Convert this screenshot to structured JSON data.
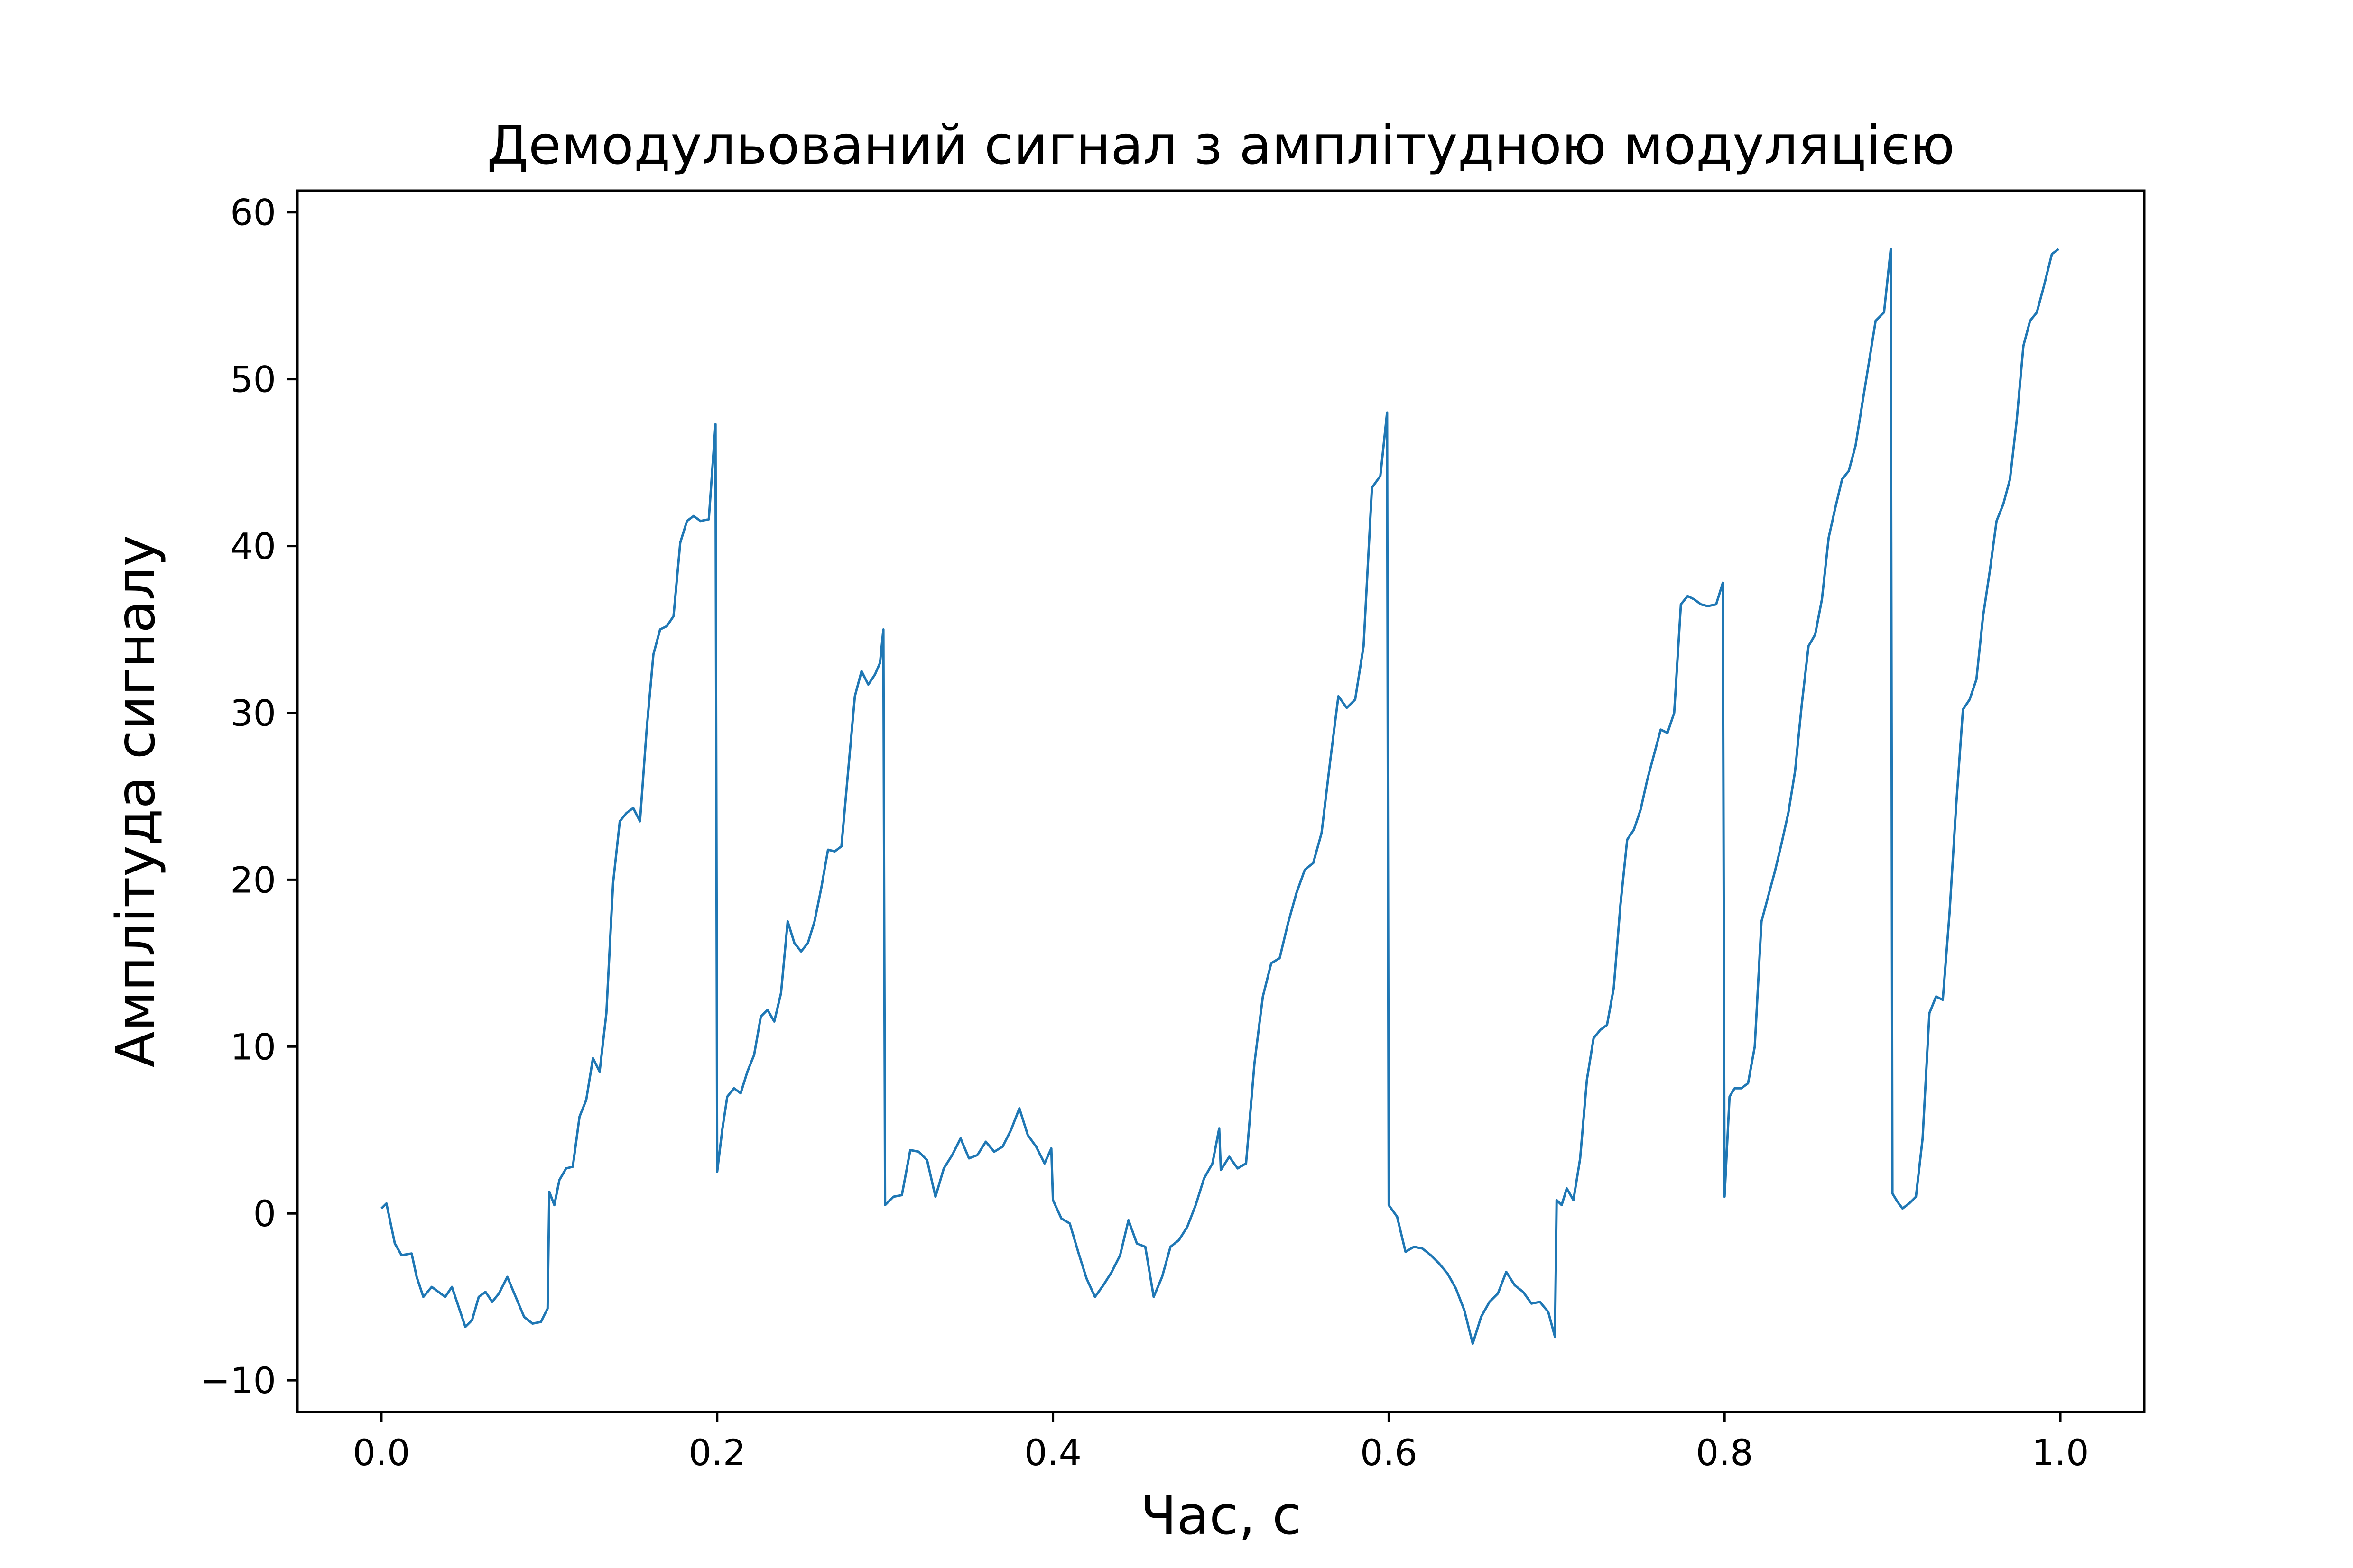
{
  "chart_data": {
    "type": "line",
    "title": "Демодульований сигнал з амплітудною модуляцією",
    "xlabel": "Час, с",
    "ylabel": "Амплітуда сигналу",
    "xlim": [
      -0.05,
      1.05
    ],
    "ylim": [
      -11.9,
      61.3
    ],
    "xticks": [
      0.0,
      0.2,
      0.4,
      0.6,
      0.8,
      1.0
    ],
    "xtick_labels": [
      "0.0",
      "0.2",
      "0.4",
      "0.6",
      "0.8",
      "1.0"
    ],
    "yticks": [
      -10,
      0,
      10,
      20,
      30,
      40,
      50,
      60
    ],
    "ytick_labels": [
      "−10",
      "0",
      "10",
      "20",
      "30",
      "40",
      "50",
      "60"
    ],
    "grid": false,
    "line_color": "#1f77b4",
    "series": [
      {
        "x": [
          0.0,
          0.003,
          0.008,
          0.012,
          0.018,
          0.021,
          0.025,
          0.03,
          0.034,
          0.038,
          0.042,
          0.046,
          0.05,
          0.054,
          0.058,
          0.062,
          0.066,
          0.07,
          0.075,
          0.08,
          0.085,
          0.09,
          0.095,
          0.099,
          0.1,
          0.103,
          0.106,
          0.11,
          0.114,
          0.118,
          0.122,
          0.126,
          0.13,
          0.134,
          0.138,
          0.142,
          0.146,
          0.15,
          0.154,
          0.158,
          0.162,
          0.166,
          0.17,
          0.174,
          0.178,
          0.182,
          0.186,
          0.19,
          0.195,
          0.199,
          0.2,
          0.203,
          0.206,
          0.21,
          0.214,
          0.218,
          0.222,
          0.226,
          0.23,
          0.234,
          0.238,
          0.242,
          0.246,
          0.25,
          0.254,
          0.258,
          0.262,
          0.266,
          0.27,
          0.274,
          0.278,
          0.282,
          0.286,
          0.29,
          0.294,
          0.297,
          0.299,
          0.3,
          0.305,
          0.31,
          0.315,
          0.32,
          0.325,
          0.33,
          0.335,
          0.34,
          0.345,
          0.35,
          0.355,
          0.36,
          0.365,
          0.37,
          0.375,
          0.38,
          0.385,
          0.39,
          0.395,
          0.399,
          0.4,
          0.405,
          0.41,
          0.415,
          0.42,
          0.425,
          0.43,
          0.435,
          0.44,
          0.445,
          0.45,
          0.455,
          0.46,
          0.465,
          0.47,
          0.475,
          0.48,
          0.485,
          0.49,
          0.495,
          0.499,
          0.5,
          0.505,
          0.51,
          0.515,
          0.52,
          0.525,
          0.53,
          0.535,
          0.54,
          0.545,
          0.55,
          0.555,
          0.56,
          0.565,
          0.57,
          0.575,
          0.58,
          0.585,
          0.59,
          0.595,
          0.599,
          0.6,
          0.605,
          0.61,
          0.615,
          0.62,
          0.625,
          0.63,
          0.635,
          0.64,
          0.645,
          0.65,
          0.655,
          0.66,
          0.665,
          0.67,
          0.675,
          0.68,
          0.685,
          0.69,
          0.695,
          0.699,
          0.7,
          0.703,
          0.706,
          0.71,
          0.714,
          0.718,
          0.722,
          0.726,
          0.73,
          0.734,
          0.738,
          0.742,
          0.746,
          0.75,
          0.754,
          0.758,
          0.762,
          0.766,
          0.77,
          0.774,
          0.778,
          0.782,
          0.786,
          0.79,
          0.795,
          0.799,
          0.8,
          0.803,
          0.806,
          0.81,
          0.814,
          0.818,
          0.822,
          0.826,
          0.83,
          0.834,
          0.838,
          0.842,
          0.846,
          0.85,
          0.854,
          0.858,
          0.862,
          0.866,
          0.87,
          0.874,
          0.878,
          0.882,
          0.886,
          0.89,
          0.895,
          0.899,
          0.9,
          0.903,
          0.906,
          0.91,
          0.914,
          0.918,
          0.922,
          0.926,
          0.93,
          0.934,
          0.938,
          0.942,
          0.946,
          0.95,
          0.954,
          0.958,
          0.962,
          0.966,
          0.97,
          0.974,
          0.978,
          0.982,
          0.986,
          0.99,
          0.995,
          0.999
        ],
        "y": [
          0.3,
          0.6,
          -1.8,
          -2.5,
          -2.4,
          -3.8,
          -5.0,
          -4.4,
          -4.7,
          -5.0,
          -4.4,
          -5.6,
          -6.8,
          -6.4,
          -5.0,
          -4.7,
          -5.3,
          -4.8,
          -3.8,
          -5.0,
          -6.2,
          -6.6,
          -6.5,
          -5.7,
          1.3,
          0.5,
          2.0,
          2.7,
          2.8,
          5.8,
          6.8,
          9.3,
          8.5,
          12.0,
          19.8,
          23.5,
          24.0,
          24.3,
          23.5,
          29.0,
          33.5,
          35.0,
          35.2,
          35.8,
          40.2,
          41.5,
          41.8,
          41.5,
          41.6,
          47.3,
          2.5,
          5.0,
          7.0,
          7.5,
          7.2,
          8.5,
          9.5,
          11.8,
          12.2,
          11.5,
          13.2,
          17.5,
          16.2,
          15.7,
          16.2,
          17.5,
          19.5,
          21.8,
          21.7,
          22.0,
          26.5,
          31.0,
          32.5,
          31.7,
          32.3,
          33.0,
          35.0,
          0.5,
          1.0,
          1.1,
          3.8,
          3.7,
          3.2,
          1.0,
          2.7,
          3.5,
          4.5,
          3.3,
          3.5,
          4.3,
          3.7,
          4.0,
          5.0,
          6.3,
          4.7,
          4.0,
          3.0,
          3.9,
          0.8,
          -0.3,
          -0.6,
          -2.3,
          -3.9,
          -5.0,
          -4.3,
          -3.5,
          -2.5,
          -0.4,
          -1.8,
          -2.0,
          -5.0,
          -3.8,
          -2.0,
          -1.6,
          -0.8,
          0.5,
          2.1,
          3.0,
          5.1,
          2.6,
          3.4,
          2.7,
          3.0,
          9.0,
          13.0,
          15.0,
          15.3,
          17.4,
          19.2,
          20.6,
          21.0,
          22.8,
          27.0,
          31.0,
          30.3,
          30.8,
          34.0,
          43.5,
          44.2,
          48.0,
          0.5,
          -0.2,
          -2.3,
          -2.0,
          -2.1,
          -2.5,
          -3.0,
          -3.6,
          -4.5,
          -5.8,
          -7.8,
          -6.2,
          -5.3,
          -4.8,
          -3.5,
          -4.3,
          -4.7,
          -5.4,
          -5.3,
          -5.9,
          -7.4,
          0.8,
          0.5,
          1.5,
          0.8,
          3.3,
          8.0,
          10.5,
          11.0,
          11.3,
          13.5,
          18.5,
          22.4,
          23.0,
          24.2,
          26.0,
          27.5,
          29.0,
          28.8,
          30.0,
          36.5,
          37.0,
          36.8,
          36.5,
          36.4,
          36.5,
          37.8,
          1.0,
          7.0,
          7.5,
          7.5,
          7.8,
          10.0,
          17.5,
          19.0,
          20.5,
          22.2,
          24.0,
          26.5,
          30.5,
          34.0,
          34.7,
          36.8,
          40.5,
          42.3,
          44.0,
          44.5,
          46.0,
          48.5,
          51.0,
          53.5,
          54.0,
          57.8,
          1.2,
          0.7,
          0.3,
          0.6,
          1.0,
          4.5,
          12.0,
          13.0,
          12.8,
          18.0,
          24.5,
          30.2,
          30.8,
          32.0,
          35.8,
          38.5,
          41.5,
          42.5,
          44.0,
          47.5,
          52.0,
          53.5,
          54.0,
          55.5,
          57.5,
          57.8
        ]
      }
    ]
  }
}
